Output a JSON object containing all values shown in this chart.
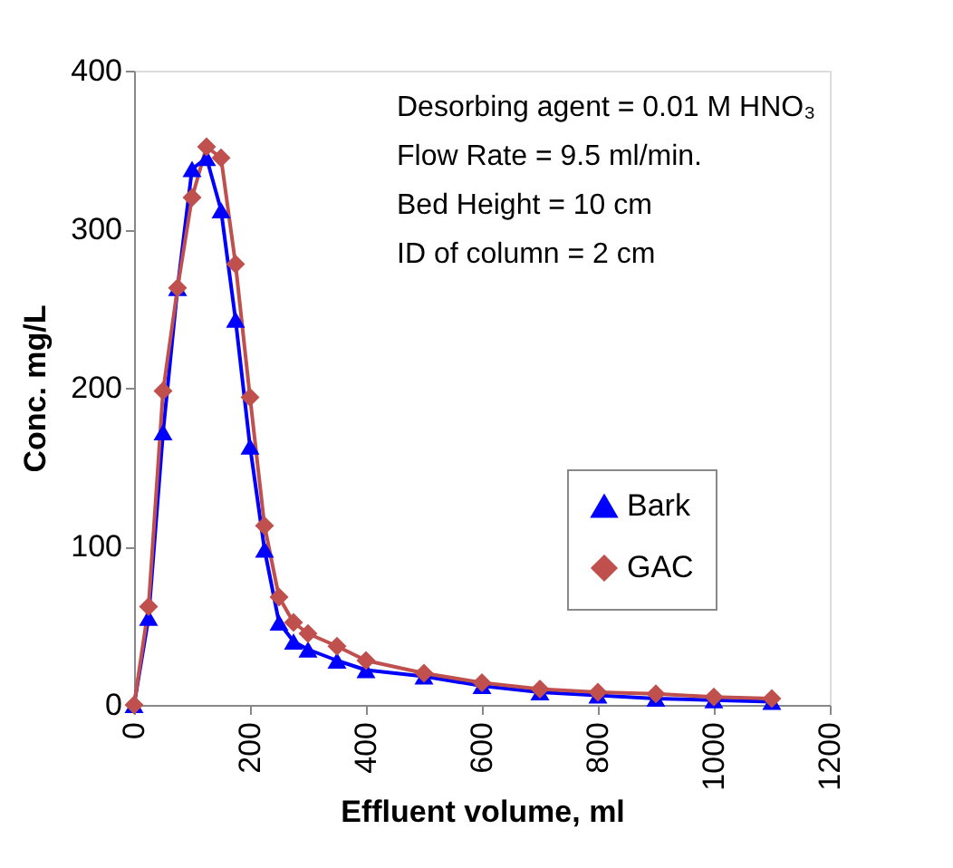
{
  "chart_data": {
    "type": "line",
    "xlabel": "Effluent volume, ml",
    "ylabel": "Conc. mg/L",
    "x": [
      0,
      25,
      50,
      75,
      100,
      125,
      150,
      175,
      200,
      225,
      250,
      275,
      300,
      350,
      400,
      500,
      600,
      700,
      800,
      900,
      1000,
      1100
    ],
    "series": [
      {
        "name": "Bark",
        "color": "#0000ff",
        "marker": "triangle",
        "values": [
          0,
          55,
          172,
          263,
          338,
          345,
          312,
          243,
          163,
          98,
          52,
          40,
          35,
          28,
          22,
          18,
          12,
          8,
          6,
          4,
          3,
          2
        ]
      },
      {
        "name": "GAC",
        "color": "#c0504d",
        "marker": "diamond",
        "values": [
          0,
          62,
          198,
          263,
          320,
          352,
          345,
          278,
          194,
          113,
          68,
          52,
          45,
          37,
          28,
          20,
          14,
          10,
          8,
          7,
          5,
          4
        ]
      }
    ],
    "xlim": [
      0,
      1200
    ],
    "xticks": [
      0,
      200,
      400,
      600,
      800,
      1000,
      1200
    ],
    "ylim": [
      0,
      400
    ],
    "yticks": [
      0,
      100,
      200,
      300,
      400
    ],
    "grid": false,
    "legend": "bottom right",
    "annotations": [
      "Desorbing agent  =  0.01 M HNO₃",
      "Flow Rate            =  9.5 ml/min.",
      "Bed Height          =  10 cm",
      "ID of column        =  2 cm"
    ]
  }
}
